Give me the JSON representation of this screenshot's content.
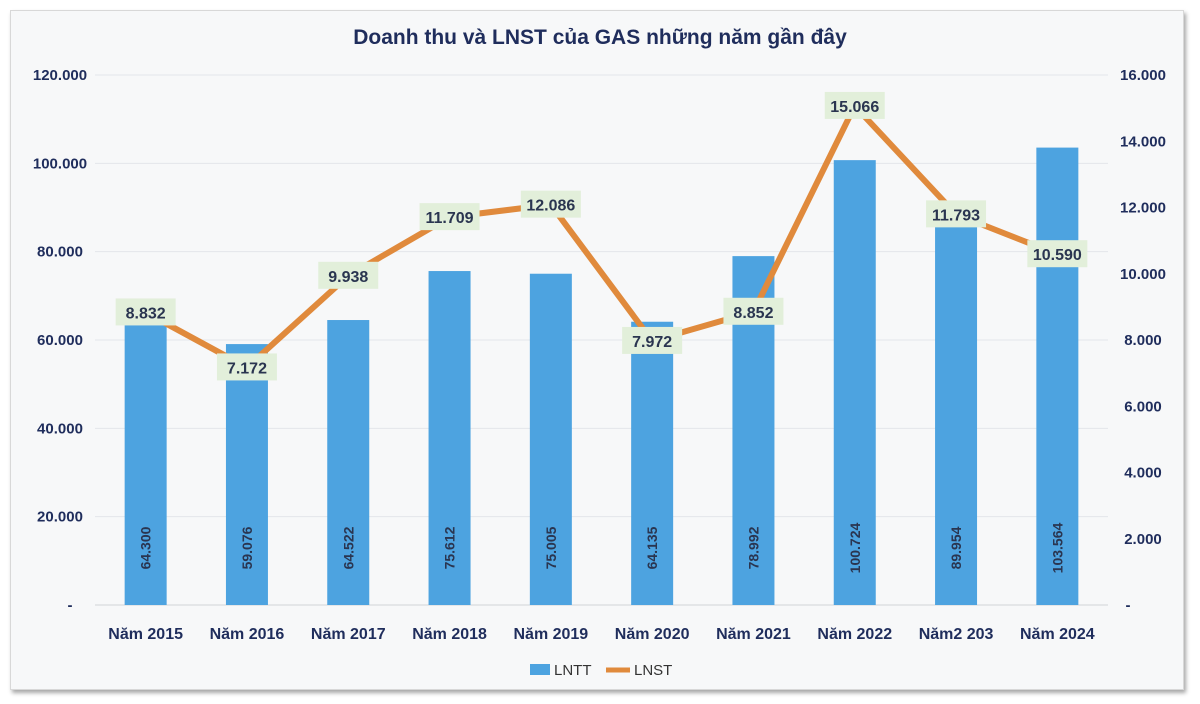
{
  "chart_data": {
    "type": "bar+line",
    "title": "Doanh thu và LNST của GAS những năm gần đây",
    "categories": [
      "Năm 2015",
      "Năm 2016",
      "Năm 2017",
      "Năm 2018",
      "Năm 2019",
      "Năm 2020",
      "Năm 2021",
      "Năm 2022",
      "Năm2 203",
      "Năm 2024"
    ],
    "series": [
      {
        "name": "LNTT",
        "type": "bar",
        "axis": "left",
        "color": "#4da3e0",
        "values": [
          64300,
          59076,
          64522,
          75612,
          75005,
          64135,
          78992,
          100724,
          89954,
          103564
        ],
        "labels": [
          "64.300",
          "59.076",
          "64.522",
          "75.612",
          "75.005",
          "64.135",
          "78.992",
          "100.724",
          "89.954",
          "103.564"
        ]
      },
      {
        "name": "LNST",
        "type": "line",
        "axis": "right",
        "color": "#e08a3c",
        "values": [
          8832,
          7172,
          9938,
          11709,
          12086,
          7972,
          8852,
          15066,
          11793,
          10590
        ],
        "labels": [
          "8.832",
          "7.172",
          "9.938",
          "11.709",
          "12.086",
          "7.972",
          "8.852",
          "15.066",
          "11.793",
          "10.590"
        ]
      }
    ],
    "left_axis": {
      "range": [
        0,
        120000
      ],
      "ticks": [
        "-",
        "20.000",
        "40.000",
        "60.000",
        "80.000",
        "100.000",
        "120.000"
      ]
    },
    "right_axis": {
      "range": [
        0,
        16000
      ],
      "ticks": [
        "-",
        "2.000",
        "4.000",
        "6.000",
        "8.000",
        "10.000",
        "12.000",
        "14.000",
        "16.000"
      ]
    },
    "grid": true,
    "legend": "bottom",
    "label_box_color": "#e2efda"
  }
}
